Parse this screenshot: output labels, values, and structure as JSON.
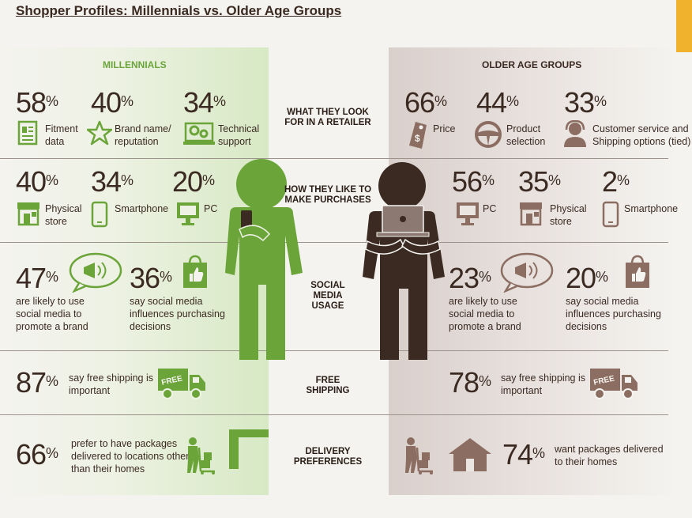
{
  "title": "Shopper Profiles: Millennials vs. Older Age Groups",
  "colors": {
    "millennial": "#6ba53a",
    "older": "#8c6d62",
    "text": "#3b2a22"
  },
  "headers": {
    "millennials": "MILLENNIALS",
    "older": "OLDER AGE GROUPS"
  },
  "sections": {
    "look_for": "WHAT THEY LOOK FOR IN A RETAILER",
    "purchase": "HOW THEY LIKE TO MAKE PURCHASES",
    "social": "SOCIAL MEDIA USAGE",
    "shipping": "FREE SHIPPING",
    "delivery": "DELIVERY PREFERENCES"
  },
  "millennials": {
    "look_for": [
      {
        "pct": "58",
        "label": "Fitment data",
        "icon": "document-icon"
      },
      {
        "pct": "40",
        "label": "Brand name/ reputation",
        "icon": "star-icon"
      },
      {
        "pct": "34",
        "label": "Technical support",
        "icon": "gears-laptop-icon"
      }
    ],
    "purchase": [
      {
        "pct": "40",
        "label": "Physical store",
        "icon": "store-icon"
      },
      {
        "pct": "34",
        "label": "Smartphone",
        "icon": "smartphone-icon"
      },
      {
        "pct": "20",
        "label": "PC",
        "icon": "monitor-icon"
      }
    ],
    "social": [
      {
        "pct": "47",
        "label": "are likely to use social media to promote a brand",
        "icon": "megaphone-bubble-icon"
      },
      {
        "pct": "36",
        "label": "say social media influences purchasing decisions",
        "icon": "thumbs-up-bag-icon"
      }
    ],
    "shipping": {
      "pct": "87",
      "label": "say free shipping is important",
      "truck": "FREE"
    },
    "delivery": {
      "pct": "66",
      "label": "prefer to have packages delivered to locations other than their homes"
    }
  },
  "older": {
    "look_for": [
      {
        "pct": "66",
        "label": "Price",
        "icon": "price-tag-icon"
      },
      {
        "pct": "44",
        "label": "Product selection",
        "icon": "steering-wheel-icon"
      },
      {
        "pct": "33",
        "label": "Customer service and Shipping options (tied)",
        "icon": "headset-icon"
      }
    ],
    "purchase": [
      {
        "pct": "56",
        "label": "PC",
        "icon": "monitor-icon"
      },
      {
        "pct": "35",
        "label": "Physical store",
        "icon": "store-icon"
      },
      {
        "pct": "2",
        "label": "Smartphone",
        "icon": "smartphone-icon"
      }
    ],
    "social": [
      {
        "pct": "23",
        "label": "are likely to use social media to promote a brand",
        "icon": "megaphone-bubble-icon"
      },
      {
        "pct": "20",
        "label": "say social media influences purchasing decisions",
        "icon": "thumbs-up-bag-icon"
      }
    ],
    "shipping": {
      "pct": "78",
      "label": "say free shipping is important",
      "truck": "FREE"
    },
    "delivery": {
      "pct": "74",
      "label": "want packages delivered to their homes"
    }
  },
  "pct_sign": "%"
}
